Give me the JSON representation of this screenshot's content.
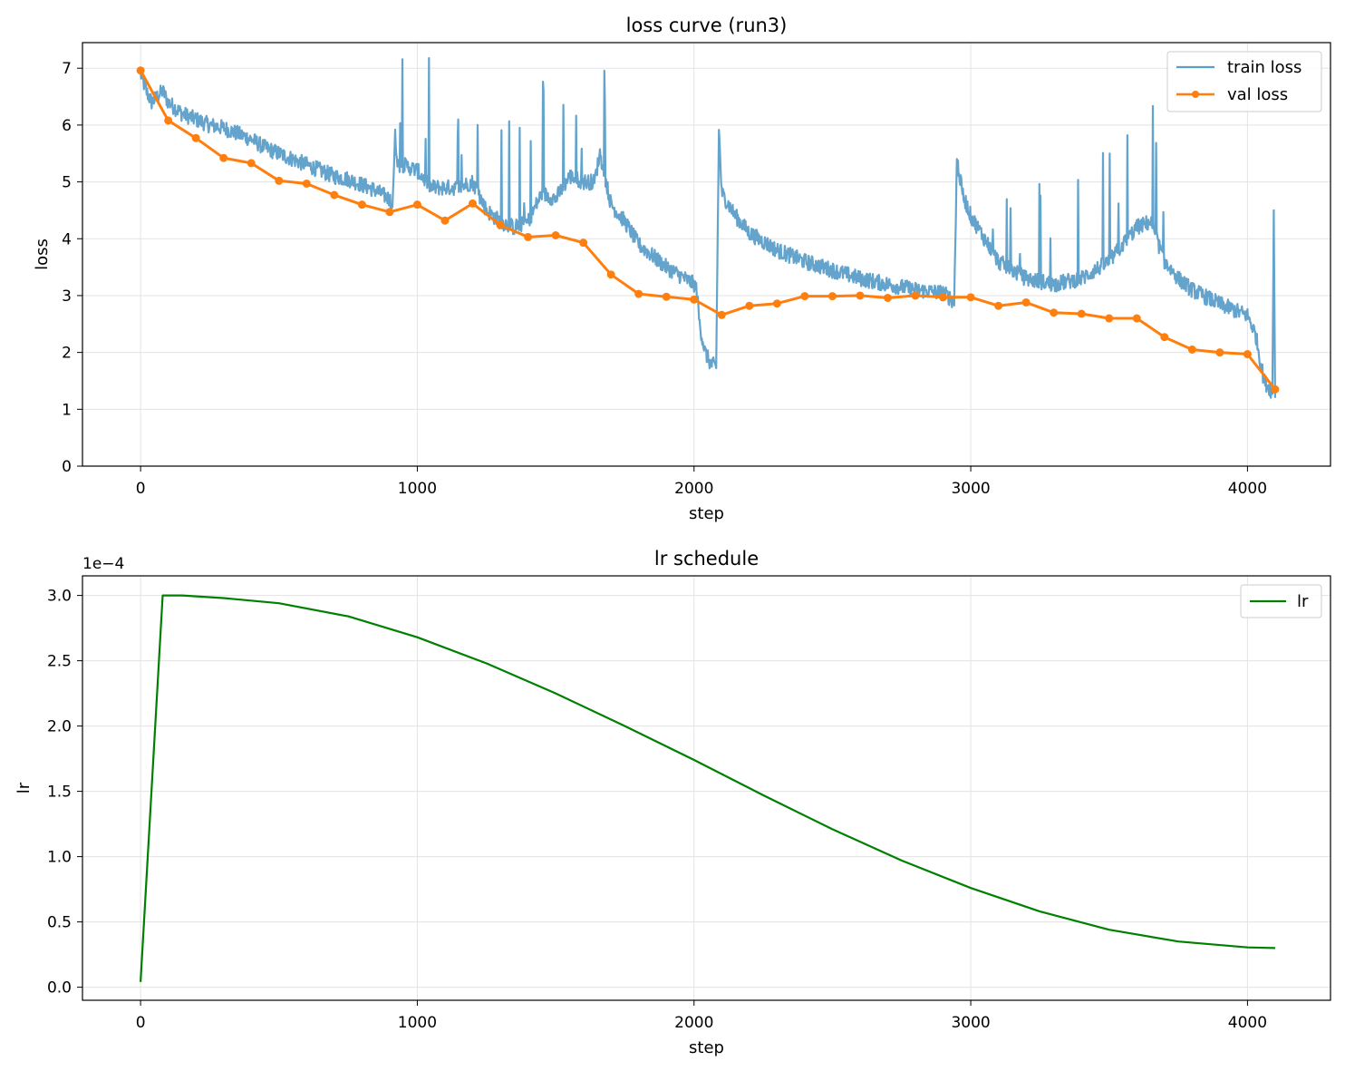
{
  "chart_data": [
    {
      "type": "line",
      "title": "loss curve (run3)",
      "xlabel": "step",
      "ylabel": "loss",
      "xlim": [
        -210,
        4300
      ],
      "ylim": [
        0,
        7.45
      ],
      "xticks": [
        0,
        1000,
        2000,
        3000,
        4000
      ],
      "yticks": [
        0,
        1,
        2,
        3,
        4,
        5,
        6,
        7
      ],
      "grid": true,
      "legend": "top-right",
      "series": [
        {
          "name": "train loss",
          "color": "#5b9ec9",
          "marker": "none",
          "x": [
            0,
            20,
            40,
            60,
            80,
            100,
            150,
            200,
            250,
            300,
            350,
            400,
            450,
            500,
            550,
            600,
            650,
            700,
            750,
            800,
            850,
            900,
            910,
            920,
            930,
            950,
            1000,
            1050,
            1100,
            1150,
            1200,
            1250,
            1300,
            1350,
            1400,
            1450,
            1500,
            1550,
            1600,
            1640,
            1660,
            1700,
            1750,
            1800,
            1850,
            1900,
            1950,
            2000,
            2010,
            2020,
            2040,
            2060,
            2080,
            2090,
            2100,
            2150,
            2200,
            2300,
            2400,
            2500,
            2600,
            2700,
            2800,
            2900,
            2940,
            2950,
            2970,
            3000,
            3050,
            3100,
            3200,
            3300,
            3400,
            3500,
            3600,
            3650,
            3700,
            3750,
            3800,
            3900,
            4000,
            4010,
            4030,
            4060,
            4090,
            4095,
            4100
          ],
          "y": [
            6.9,
            6.6,
            6.4,
            6.5,
            6.6,
            6.4,
            6.2,
            6.1,
            6.0,
            5.95,
            5.85,
            5.75,
            5.6,
            5.5,
            5.4,
            5.3,
            5.2,
            5.1,
            5.05,
            4.95,
            4.85,
            4.7,
            4.6,
            5.8,
            5.3,
            5.3,
            5.2,
            4.9,
            4.9,
            4.9,
            5.0,
            4.5,
            4.3,
            4.2,
            4.3,
            4.8,
            4.7,
            5.1,
            5.0,
            5.0,
            5.5,
            4.6,
            4.3,
            3.9,
            3.7,
            3.5,
            3.35,
            3.2,
            3.1,
            2.5,
            2.0,
            1.8,
            1.75,
            5.9,
            4.8,
            4.4,
            4.1,
            3.8,
            3.6,
            3.45,
            3.3,
            3.2,
            3.1,
            3.05,
            2.9,
            5.4,
            4.8,
            4.4,
            4.0,
            3.6,
            3.3,
            3.2,
            3.3,
            3.6,
            4.2,
            4.3,
            3.6,
            3.3,
            3.1,
            2.85,
            2.65,
            2.55,
            2.3,
            1.5,
            1.3,
            4.5,
            1.2
          ]
        },
        {
          "name": "val loss",
          "color": "#ff7f0e",
          "marker": "circle",
          "x": [
            0,
            100,
            200,
            300,
            400,
            500,
            600,
            700,
            800,
            900,
            1000,
            1100,
            1200,
            1300,
            1400,
            1500,
            1600,
            1700,
            1800,
            1900,
            2000,
            2100,
            2200,
            2300,
            2400,
            2500,
            2600,
            2700,
            2800,
            2900,
            3000,
            3100,
            3200,
            3300,
            3400,
            3500,
            3600,
            3700,
            3800,
            3900,
            4000,
            4100
          ],
          "y": [
            6.96,
            6.08,
            5.77,
            5.42,
            5.33,
            5.02,
            4.97,
            4.77,
            4.6,
            4.47,
            4.6,
            4.32,
            4.62,
            4.24,
            4.03,
            4.06,
            3.93,
            3.37,
            3.03,
            2.98,
            2.93,
            2.66,
            2.82,
            2.86,
            2.99,
            2.99,
            3.0,
            2.96,
            3.0,
            2.97,
            2.97,
            2.82,
            2.88,
            2.7,
            2.68,
            2.6,
            2.6,
            2.27,
            2.05,
            2.0,
            1.97,
            1.35
          ]
        }
      ]
    },
    {
      "type": "line",
      "title": "lr schedule",
      "xlabel": "step",
      "ylabel": "lr",
      "scale_offset": "1e−4",
      "xlim": [
        -210,
        4300
      ],
      "ylim": [
        -0.1,
        3.15
      ],
      "xticks": [
        0,
        1000,
        2000,
        3000,
        4000
      ],
      "yticks": [
        "0.0",
        "0.5",
        "1.0",
        "1.5",
        "2.0",
        "2.5",
        "3.0"
      ],
      "grid": true,
      "legend": "top-right",
      "series": [
        {
          "name": "lr",
          "color": "#008000",
          "x": [
            0,
            80,
            150,
            300,
            500,
            750,
            1000,
            1250,
            1500,
            1750,
            2000,
            2250,
            2500,
            2750,
            3000,
            3250,
            3500,
            3750,
            4000,
            4100
          ],
          "y": [
            0.04,
            3.0,
            3.0,
            2.98,
            2.94,
            2.84,
            2.68,
            2.48,
            2.25,
            2.0,
            1.74,
            1.47,
            1.21,
            0.97,
            0.76,
            0.58,
            0.44,
            0.35,
            0.305,
            0.3
          ]
        }
      ]
    }
  ]
}
